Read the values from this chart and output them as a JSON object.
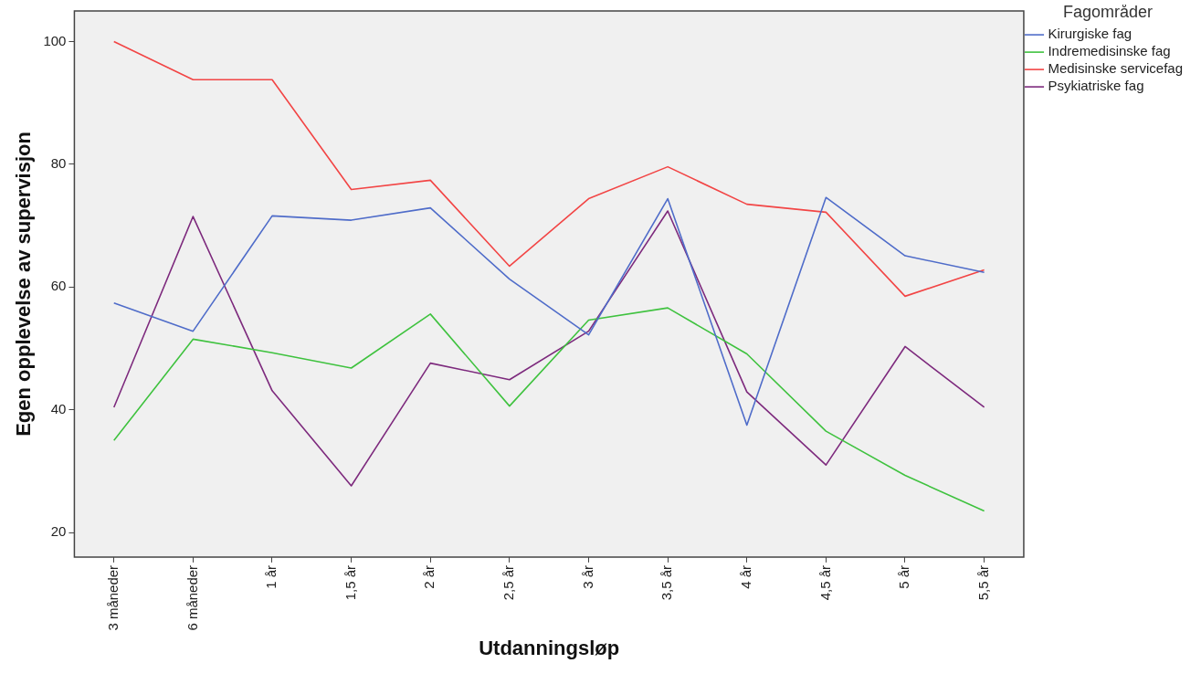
{
  "chart_data": {
    "type": "line",
    "xlabel": "Utdanningsløp",
    "ylabel": "Egen opplevelse av supervisjon",
    "legend_title": "Fagområder",
    "legend": "top right",
    "grid": false,
    "marker": "none",
    "line_style": "solid",
    "categories": [
      "3 måneder",
      "6 måneder",
      "1 år",
      "1,5 år",
      "2 år",
      "2,5 år",
      "3 år",
      "3,5 år",
      "4 år",
      "4,5 år",
      "5 år",
      "5,5 år"
    ],
    "ylim": [
      16,
      105
    ],
    "yticks": [
      20,
      40,
      60,
      80,
      100
    ],
    "series": [
      {
        "name": "Kirurgiske fag",
        "color": "#4f6cc9",
        "values": [
          57.4,
          52.8,
          71.6,
          70.9,
          72.9,
          61.3,
          52.2,
          74.4,
          37.5,
          74.6,
          65.1,
          62.4
        ]
      },
      {
        "name": "Indremedisinske fag",
        "color": "#3fc23f",
        "values": [
          35.0,
          51.5,
          49.3,
          46.8,
          55.6,
          40.6,
          54.6,
          56.6,
          49.1,
          36.5,
          29.3,
          23.5
        ]
      },
      {
        "name": "Medisinske servicefag",
        "color": "#f24545",
        "values": [
          100,
          93.8,
          93.8,
          75.9,
          77.4,
          63.4,
          74.4,
          79.6,
          73.5,
          72.2,
          58.5,
          62.8
        ]
      },
      {
        "name": "Psykiatriske fag",
        "color": "#7d2a7d",
        "values": [
          40.4,
          71.5,
          43.1,
          27.6,
          47.6,
          44.9,
          52.8,
          72.4,
          42.9,
          31.0,
          50.3,
          40.4
        ]
      }
    ]
  }
}
